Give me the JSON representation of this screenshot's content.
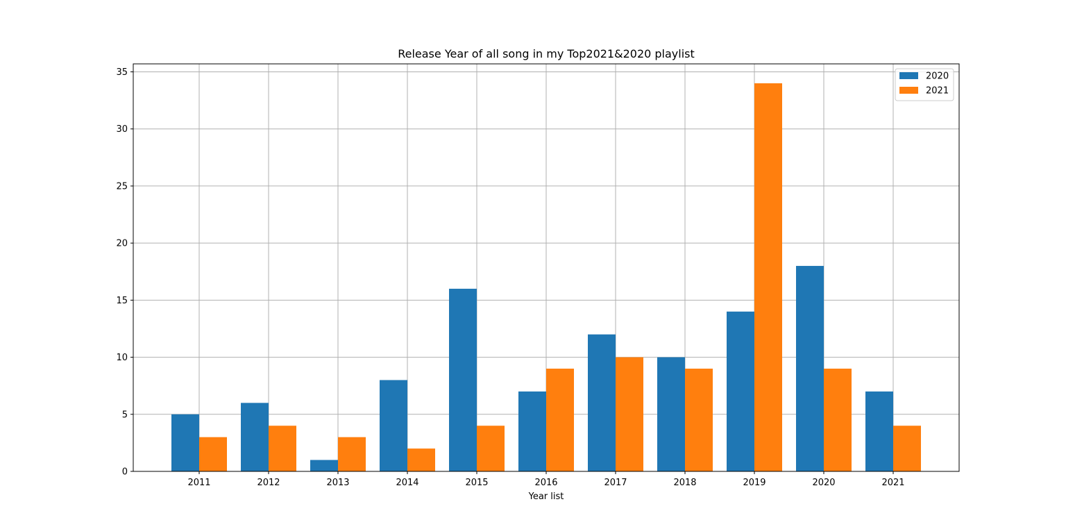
{
  "chart_data": {
    "type": "bar",
    "title": "Release Year of all song in my Top2021&2020 playlist",
    "xlabel": "Year list",
    "ylabel": "",
    "categories": [
      "2011",
      "2012",
      "2013",
      "2014",
      "2015",
      "2016",
      "2017",
      "2018",
      "2019",
      "2020",
      "2021"
    ],
    "series": [
      {
        "name": "2020",
        "color": "#1f77b4",
        "values": [
          5,
          6,
          1,
          8,
          16,
          7,
          12,
          10,
          14,
          18,
          7
        ]
      },
      {
        "name": "2021",
        "color": "#ff7f0e",
        "values": [
          3,
          4,
          3,
          2,
          4,
          9,
          10,
          9,
          34,
          9,
          4
        ]
      }
    ],
    "ylim": [
      0,
      35.7
    ],
    "yticks": [
      0,
      5,
      10,
      15,
      20,
      25,
      30,
      35
    ],
    "grid": true,
    "legend": "top-right"
  }
}
